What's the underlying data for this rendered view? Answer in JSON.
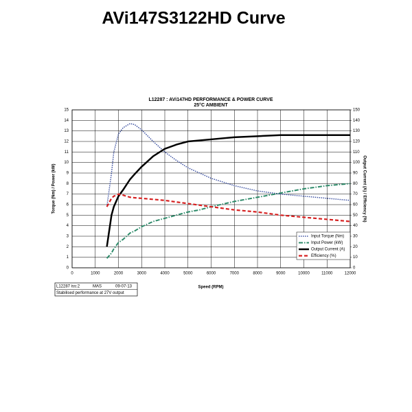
{
  "heading": "AVi147S3122HD Curve",
  "chart_data": {
    "type": "line",
    "title": "L12287 : AVi147HD PERFORMANCE & POWER CURVE",
    "subtitle": "25°C AMBIENT",
    "x_label": "Speed (RPM)",
    "y_label": "Torque (Nm) / Power (kW)",
    "y2_label": "Output Current (A) / Efficiency (%)",
    "x": [
      1500,
      1700,
      1800,
      2000,
      2200,
      2500,
      2700,
      3000,
      3500,
      4000,
      4500,
      5000,
      5500,
      6000,
      7000,
      8000,
      9000,
      10000,
      11000,
      12000
    ],
    "series": [
      {
        "name": "Input Torque (Nm)",
        "color": "#3a4fa0",
        "dash": "dotted",
        "values": [
          5.8,
          9,
          11,
          12.7,
          13.3,
          13.7,
          13.6,
          13.1,
          12,
          11,
          10.2,
          9.5,
          9,
          8.5,
          7.8,
          7.3,
          7,
          6.8,
          6.6,
          6.4
        ]
      },
      {
        "name": "Input Power (kW)",
        "color": "#2e8b6a",
        "dash": "dash-dot",
        "values": [
          0.9,
          1.4,
          1.8,
          2.4,
          2.7,
          3.3,
          3.5,
          3.9,
          4.4,
          4.7,
          5.0,
          5.3,
          5.5,
          5.8,
          6.3,
          6.7,
          7.1,
          7.5,
          7.8,
          8.0
        ]
      },
      {
        "name": "Output Current (A)",
        "color": "#000000",
        "dash": "solid",
        "axis": "y2",
        "values": [
          20,
          50,
          58,
          68,
          74,
          84,
          89,
          96,
          106,
          113,
          117,
          120,
          121,
          122,
          124,
          125,
          126,
          126,
          126,
          126
        ]
      },
      {
        "name": "Efficiency (%)",
        "color": "#d62020",
        "dash": "dashed",
        "axis": "y2",
        "values": [
          58,
          66,
          68,
          70,
          69,
          67,
          66.5,
          66,
          65,
          64,
          62.5,
          61,
          59.5,
          58,
          55,
          53,
          50,
          48,
          46,
          44
        ]
      }
    ],
    "xlim": [
      0,
      12000
    ],
    "xticks": [
      0,
      1000,
      2000,
      3000,
      4000,
      5000,
      6000,
      7000,
      8000,
      9000,
      10000,
      11000,
      12000
    ],
    "ylim": [
      0,
      15
    ],
    "yticks": [
      0,
      1,
      2,
      3,
      4,
      5,
      6,
      7,
      8,
      9,
      10,
      11,
      12,
      13,
      14,
      15
    ],
    "y2lim": [
      0,
      150
    ],
    "y2ticks": [
      0,
      10,
      20,
      30,
      40,
      50,
      60,
      70,
      80,
      90,
      100,
      110,
      120,
      130,
      140,
      150
    ],
    "grid": true,
    "legend": "lower right",
    "footer": [
      "L12287 iss:2",
      "MAS",
      "09-07-13",
      "Stabilised performance at 27V output"
    ]
  }
}
